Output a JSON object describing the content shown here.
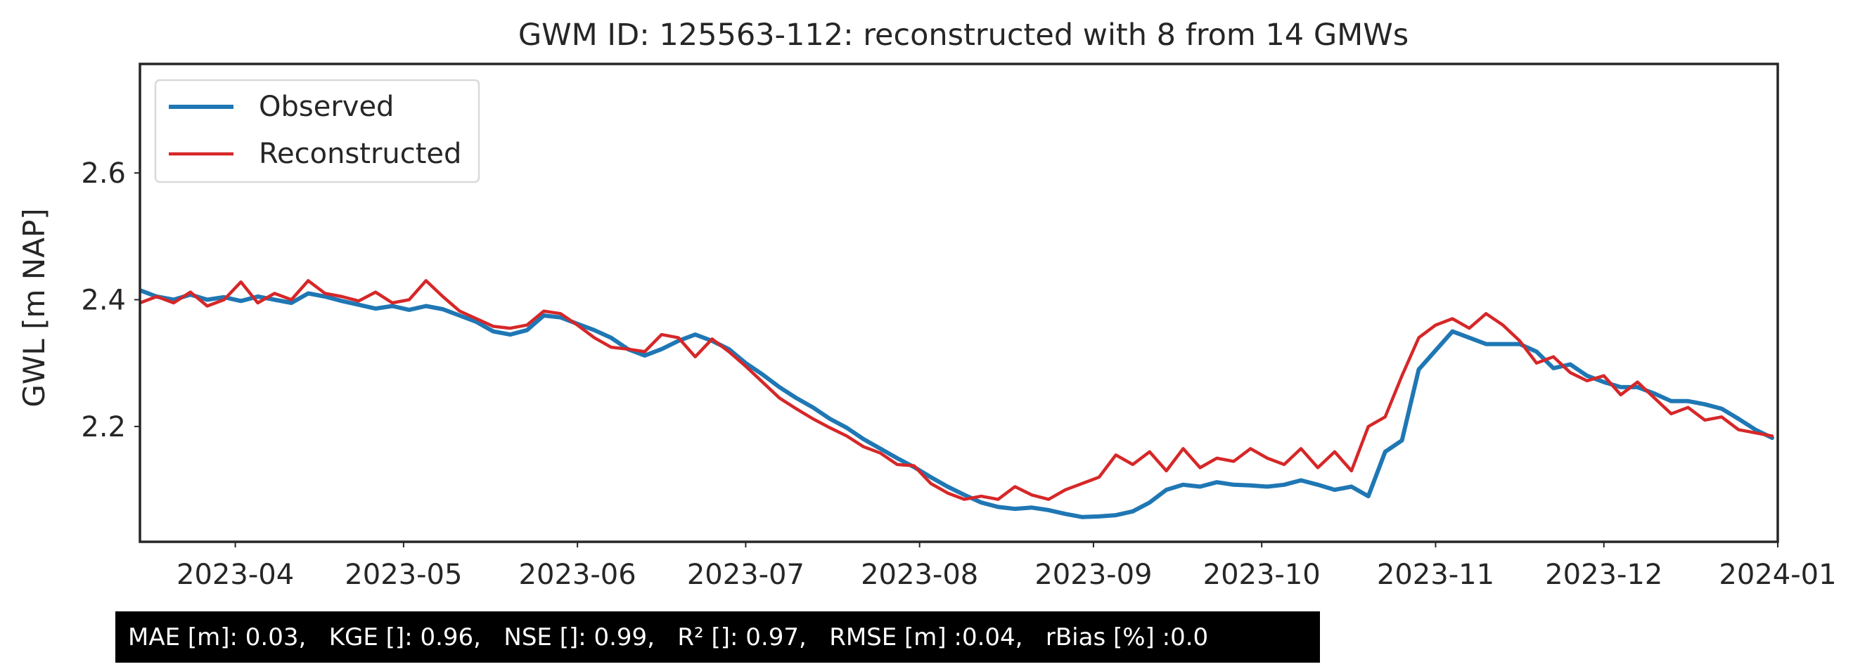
{
  "chart_data": {
    "type": "line",
    "title": "GWM ID: 125563-112: reconstructed with 8 from 14 GMWs",
    "xlabel": "",
    "ylabel": "GWL [m NAP]",
    "xlim": [
      "2023-03-15",
      "2024-01-01"
    ],
    "ylim": [
      2.018,
      2.772
    ],
    "x_ticks": [
      "2023-04",
      "2023-05",
      "2023-06",
      "2023-07",
      "2023-08",
      "2023-09",
      "2023-10",
      "2023-11",
      "2023-12",
      "2024-01"
    ],
    "x_tick_dates": [
      "2023-04-01",
      "2023-05-01",
      "2023-06-01",
      "2023-07-01",
      "2023-08-01",
      "2023-09-01",
      "2023-10-01",
      "2023-11-01",
      "2023-12-01",
      "2024-01-01"
    ],
    "y_ticks": [
      2.2,
      2.4,
      2.6
    ],
    "grid": false,
    "legend": {
      "placement": "top-left",
      "entries": [
        "Observed",
        "Reconstructed"
      ]
    },
    "series": [
      {
        "name": "Observed",
        "color": "#1f77b4",
        "points": [
          [
            "2023-03-15",
            2.415
          ],
          [
            "2023-03-18",
            2.405
          ],
          [
            "2023-03-21",
            2.4
          ],
          [
            "2023-03-24",
            2.408
          ],
          [
            "2023-03-27",
            2.4
          ],
          [
            "2023-03-30",
            2.404
          ],
          [
            "2023-04-02",
            2.398
          ],
          [
            "2023-04-05",
            2.405
          ],
          [
            "2023-04-08",
            2.4
          ],
          [
            "2023-04-11",
            2.395
          ],
          [
            "2023-04-14",
            2.41
          ],
          [
            "2023-04-17",
            2.405
          ],
          [
            "2023-04-20",
            2.398
          ],
          [
            "2023-04-23",
            2.392
          ],
          [
            "2023-04-26",
            2.386
          ],
          [
            "2023-04-29",
            2.39
          ],
          [
            "2023-05-02",
            2.384
          ],
          [
            "2023-05-05",
            2.39
          ],
          [
            "2023-05-08",
            2.385
          ],
          [
            "2023-05-11",
            2.375
          ],
          [
            "2023-05-14",
            2.365
          ],
          [
            "2023-05-17",
            2.35
          ],
          [
            "2023-05-20",
            2.345
          ],
          [
            "2023-05-23",
            2.352
          ],
          [
            "2023-05-26",
            2.375
          ],
          [
            "2023-05-29",
            2.372
          ],
          [
            "2023-06-01",
            2.362
          ],
          [
            "2023-06-04",
            2.352
          ],
          [
            "2023-06-07",
            2.34
          ],
          [
            "2023-06-10",
            2.322
          ],
          [
            "2023-06-13",
            2.312
          ],
          [
            "2023-06-16",
            2.322
          ],
          [
            "2023-06-19",
            2.335
          ],
          [
            "2023-06-22",
            2.345
          ],
          [
            "2023-06-25",
            2.335
          ],
          [
            "2023-06-28",
            2.322
          ],
          [
            "2023-07-01",
            2.3
          ],
          [
            "2023-07-04",
            2.282
          ],
          [
            "2023-07-07",
            2.262
          ],
          [
            "2023-07-10",
            2.245
          ],
          [
            "2023-07-13",
            2.23
          ],
          [
            "2023-07-16",
            2.212
          ],
          [
            "2023-07-19",
            2.198
          ],
          [
            "2023-07-22",
            2.18
          ],
          [
            "2023-07-25",
            2.165
          ],
          [
            "2023-07-28",
            2.15
          ],
          [
            "2023-07-31",
            2.136
          ],
          [
            "2023-08-03",
            2.12
          ],
          [
            "2023-08-06",
            2.105
          ],
          [
            "2023-08-09",
            2.092
          ],
          [
            "2023-08-12",
            2.08
          ],
          [
            "2023-08-15",
            2.073
          ],
          [
            "2023-08-18",
            2.07
          ],
          [
            "2023-08-21",
            2.072
          ],
          [
            "2023-08-24",
            2.068
          ],
          [
            "2023-08-27",
            2.062
          ],
          [
            "2023-08-30",
            2.057
          ],
          [
            "2023-09-02",
            2.058
          ],
          [
            "2023-09-05",
            2.06
          ],
          [
            "2023-09-08",
            2.066
          ],
          [
            "2023-09-11",
            2.08
          ],
          [
            "2023-09-14",
            2.1
          ],
          [
            "2023-09-17",
            2.108
          ],
          [
            "2023-09-20",
            2.105
          ],
          [
            "2023-09-23",
            2.112
          ],
          [
            "2023-09-26",
            2.108
          ],
          [
            "2023-09-29",
            2.107
          ],
          [
            "2023-10-02",
            2.105
          ],
          [
            "2023-10-05",
            2.108
          ],
          [
            "2023-10-08",
            2.115
          ],
          [
            "2023-10-11",
            2.108
          ],
          [
            "2023-10-14",
            2.1
          ],
          [
            "2023-10-17",
            2.105
          ],
          [
            "2023-10-20",
            2.09
          ],
          [
            "2023-10-23",
            2.16
          ],
          [
            "2023-10-26",
            2.178
          ],
          [
            "2023-10-29",
            2.29
          ],
          [
            "2023-11-01",
            2.32
          ],
          [
            "2023-11-04",
            2.35
          ],
          [
            "2023-11-07",
            2.34
          ],
          [
            "2023-11-10",
            2.33
          ],
          [
            "2023-11-13",
            2.33
          ],
          [
            "2023-11-16",
            2.33
          ],
          [
            "2023-11-19",
            2.318
          ],
          [
            "2023-11-22",
            2.292
          ],
          [
            "2023-11-25",
            2.298
          ],
          [
            "2023-11-28",
            2.28
          ],
          [
            "2023-12-01",
            2.27
          ],
          [
            "2023-12-04",
            2.262
          ],
          [
            "2023-12-07",
            2.262
          ],
          [
            "2023-12-10",
            2.252
          ],
          [
            "2023-12-13",
            2.24
          ],
          [
            "2023-12-16",
            2.24
          ],
          [
            "2023-12-19",
            2.235
          ],
          [
            "2023-12-22",
            2.228
          ],
          [
            "2023-12-25",
            2.212
          ],
          [
            "2023-12-28",
            2.195
          ],
          [
            "2023-12-31",
            2.182
          ]
        ]
      },
      {
        "name": "Reconstructed",
        "color": "#d62728",
        "points": [
          [
            "2023-03-15",
            2.395
          ],
          [
            "2023-03-18",
            2.405
          ],
          [
            "2023-03-21",
            2.395
          ],
          [
            "2023-03-24",
            2.412
          ],
          [
            "2023-03-27",
            2.39
          ],
          [
            "2023-03-30",
            2.4
          ],
          [
            "2023-04-02",
            2.428
          ],
          [
            "2023-04-05",
            2.395
          ],
          [
            "2023-04-08",
            2.41
          ],
          [
            "2023-04-11",
            2.4
          ],
          [
            "2023-04-14",
            2.43
          ],
          [
            "2023-04-17",
            2.41
          ],
          [
            "2023-04-20",
            2.405
          ],
          [
            "2023-04-23",
            2.398
          ],
          [
            "2023-04-26",
            2.412
          ],
          [
            "2023-04-29",
            2.395
          ],
          [
            "2023-05-02",
            2.4
          ],
          [
            "2023-05-05",
            2.43
          ],
          [
            "2023-05-08",
            2.405
          ],
          [
            "2023-05-11",
            2.382
          ],
          [
            "2023-05-14",
            2.37
          ],
          [
            "2023-05-17",
            2.358
          ],
          [
            "2023-05-20",
            2.355
          ],
          [
            "2023-05-23",
            2.36
          ],
          [
            "2023-05-26",
            2.382
          ],
          [
            "2023-05-29",
            2.378
          ],
          [
            "2023-06-01",
            2.36
          ],
          [
            "2023-06-04",
            2.34
          ],
          [
            "2023-06-07",
            2.325
          ],
          [
            "2023-06-10",
            2.322
          ],
          [
            "2023-06-13",
            2.318
          ],
          [
            "2023-06-16",
            2.345
          ],
          [
            "2023-06-19",
            2.34
          ],
          [
            "2023-06-22",
            2.31
          ],
          [
            "2023-06-25",
            2.338
          ],
          [
            "2023-06-28",
            2.318
          ],
          [
            "2023-07-01",
            2.295
          ],
          [
            "2023-07-04",
            2.27
          ],
          [
            "2023-07-07",
            2.245
          ],
          [
            "2023-07-10",
            2.228
          ],
          [
            "2023-07-13",
            2.212
          ],
          [
            "2023-07-16",
            2.198
          ],
          [
            "2023-07-19",
            2.185
          ],
          [
            "2023-07-22",
            2.168
          ],
          [
            "2023-07-25",
            2.158
          ],
          [
            "2023-07-28",
            2.14
          ],
          [
            "2023-07-31",
            2.138
          ],
          [
            "2023-08-03",
            2.11
          ],
          [
            "2023-08-06",
            2.095
          ],
          [
            "2023-08-09",
            2.085
          ],
          [
            "2023-08-12",
            2.09
          ],
          [
            "2023-08-15",
            2.085
          ],
          [
            "2023-08-18",
            2.105
          ],
          [
            "2023-08-21",
            2.092
          ],
          [
            "2023-08-24",
            2.085
          ],
          [
            "2023-08-27",
            2.1
          ],
          [
            "2023-08-30",
            2.11
          ],
          [
            "2023-09-02",
            2.12
          ],
          [
            "2023-09-05",
            2.155
          ],
          [
            "2023-09-08",
            2.14
          ],
          [
            "2023-09-11",
            2.16
          ],
          [
            "2023-09-14",
            2.13
          ],
          [
            "2023-09-17",
            2.165
          ],
          [
            "2023-09-20",
            2.135
          ],
          [
            "2023-09-23",
            2.15
          ],
          [
            "2023-09-26",
            2.145
          ],
          [
            "2023-09-29",
            2.165
          ],
          [
            "2023-10-02",
            2.15
          ],
          [
            "2023-10-05",
            2.14
          ],
          [
            "2023-10-08",
            2.165
          ],
          [
            "2023-10-11",
            2.135
          ],
          [
            "2023-10-14",
            2.16
          ],
          [
            "2023-10-17",
            2.13
          ],
          [
            "2023-10-20",
            2.2
          ],
          [
            "2023-10-23",
            2.215
          ],
          [
            "2023-10-26",
            2.28
          ],
          [
            "2023-10-29",
            2.34
          ],
          [
            "2023-11-01",
            2.36
          ],
          [
            "2023-11-04",
            2.37
          ],
          [
            "2023-11-07",
            2.355
          ],
          [
            "2023-11-10",
            2.378
          ],
          [
            "2023-11-13",
            2.36
          ],
          [
            "2023-11-16",
            2.335
          ],
          [
            "2023-11-19",
            2.3
          ],
          [
            "2023-11-22",
            2.31
          ],
          [
            "2023-11-25",
            2.285
          ],
          [
            "2023-11-28",
            2.272
          ],
          [
            "2023-12-01",
            2.28
          ],
          [
            "2023-12-04",
            2.25
          ],
          [
            "2023-12-07",
            2.27
          ],
          [
            "2023-12-10",
            2.245
          ],
          [
            "2023-12-13",
            2.22
          ],
          [
            "2023-12-16",
            2.23
          ],
          [
            "2023-12-19",
            2.21
          ],
          [
            "2023-12-22",
            2.215
          ],
          [
            "2023-12-25",
            2.195
          ],
          [
            "2023-12-28",
            2.19
          ],
          [
            "2023-12-31",
            2.185
          ]
        ]
      }
    ],
    "annotations": {
      "metrics": "MAE [m]: 0.03,   KGE []: 0.96,   NSE []: 0.99,   R² []: 0.97,   RMSE [m] :0.04,   rBias [%] :0.0"
    }
  }
}
